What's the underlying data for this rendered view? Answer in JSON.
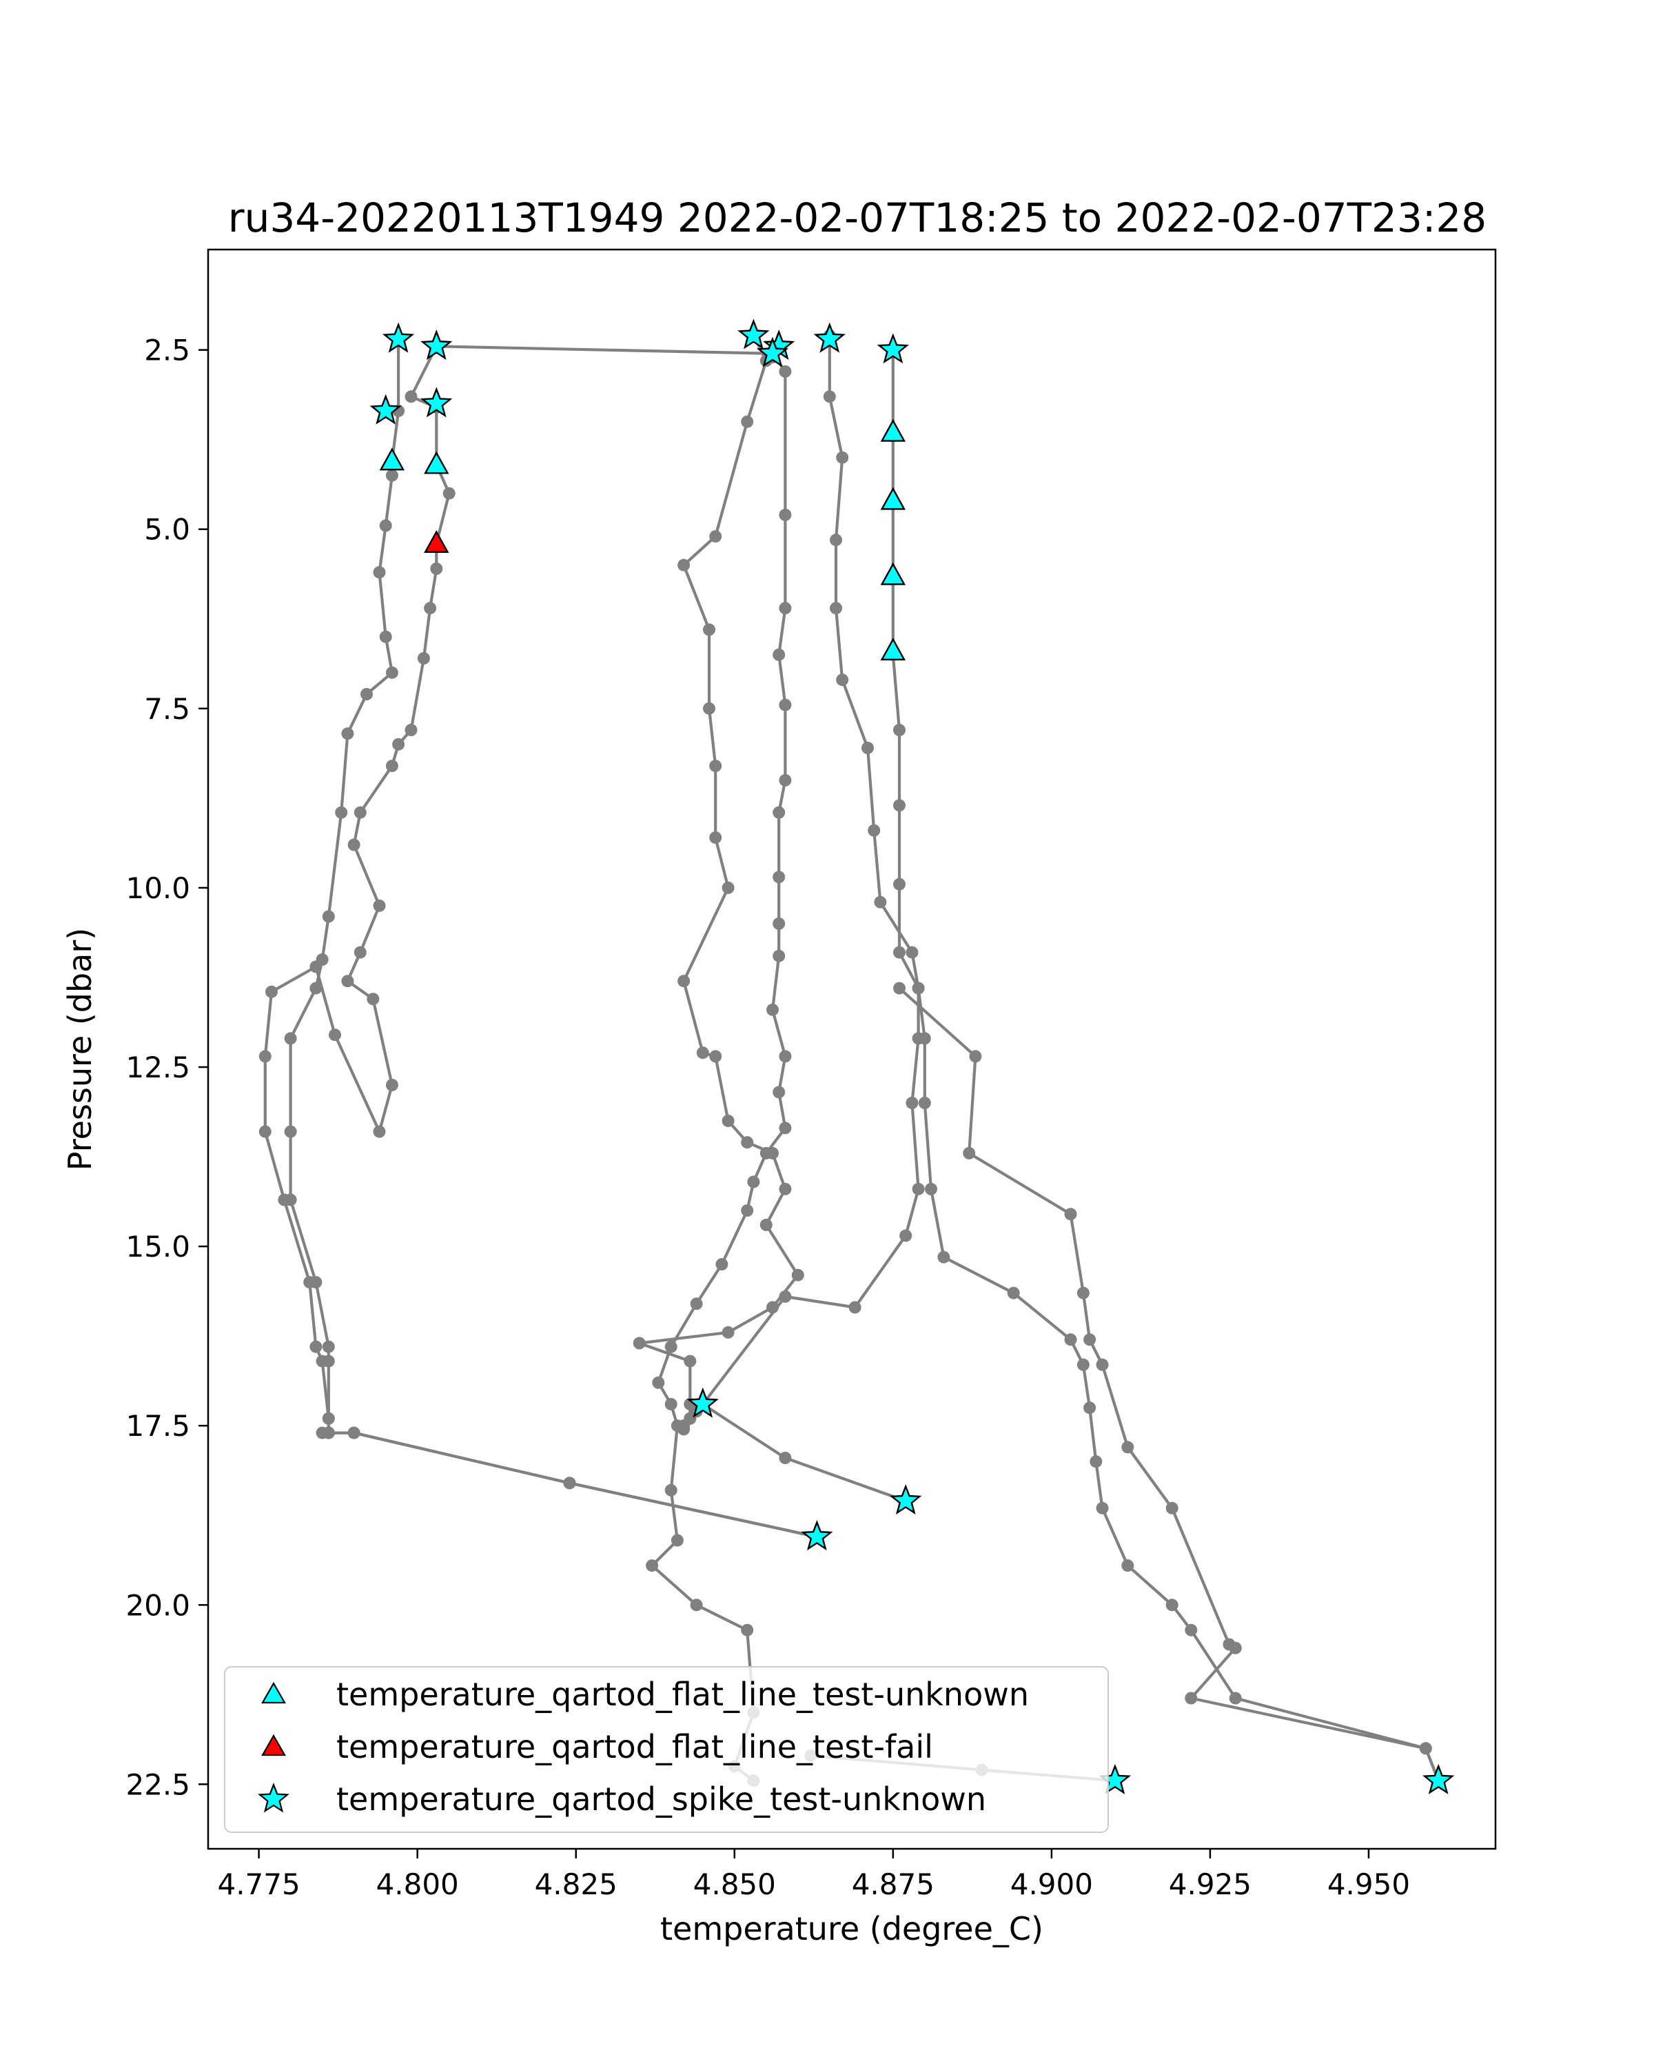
{
  "chart_data": {
    "type": "scatter",
    "title": "ru34-20220113T1949 2022-02-07T18:25 to 2022-02-07T23:28",
    "xlabel": "temperature (degree_C)",
    "ylabel": "Pressure (dbar)",
    "xlim": [
      4.767,
      4.97
    ],
    "ylim": [
      23.4,
      1.1
    ],
    "y_inverted": true,
    "x_ticks": [
      "4.775",
      "4.800",
      "4.825",
      "4.850",
      "4.875",
      "4.900",
      "4.925",
      "4.950"
    ],
    "x_tick_values": [
      4.775,
      4.8,
      4.825,
      4.85,
      4.875,
      4.9,
      4.925,
      4.95
    ],
    "y_ticks": [
      "2.5",
      "5.0",
      "7.5",
      "10.0",
      "12.5",
      "15.0",
      "17.5",
      "20.0",
      "22.5"
    ],
    "y_tick_values": [
      2.5,
      5.0,
      7.5,
      10.0,
      12.5,
      15.0,
      17.5,
      20.0,
      22.5
    ],
    "grid": false,
    "legend_position": "lower-left",
    "colors": {
      "line": "#808080",
      "unknown": "#00ffff",
      "fail": "#ff0000",
      "edge": "#000000"
    },
    "profiles": [
      {
        "x": [
          4.797,
          4.797,
          4.796,
          4.796,
          4.795,
          4.794,
          4.795,
          4.796,
          4.792,
          4.789,
          4.788,
          4.786,
          4.785,
          4.784,
          4.78,
          4.78,
          4.78,
          4.784,
          4.786,
          4.786,
          4.786,
          4.786,
          4.79,
          4.824,
          4.863
        ],
        "y": [
          2.35,
          3.35,
          4.05,
          4.25,
          4.95,
          5.6,
          6.5,
          7.0,
          7.3,
          7.85,
          8.95,
          10.4,
          11.0,
          11.4,
          12.1,
          13.4,
          14.35,
          15.5,
          16.4,
          16.6,
          17.4,
          17.6,
          17.6,
          18.3,
          19.05
        ]
      },
      {
        "x": [
          4.803,
          4.799,
          4.803,
          4.803,
          4.805,
          4.803,
          4.803,
          4.802,
          4.801,
          4.799,
          4.797,
          4.796,
          4.791,
          4.79,
          4.794,
          4.791,
          4.789,
          4.793,
          4.796,
          4.794,
          4.787,
          4.784,
          4.777,
          4.776,
          4.776,
          4.779,
          4.783,
          4.784,
          4.785,
          4.786,
          4.786,
          4.786,
          4.786,
          4.785,
          4.79,
          4.824,
          4.863
        ],
        "y": [
          2.45,
          3.15,
          3.3,
          4.1,
          4.5,
          5.2,
          5.55,
          6.1,
          6.8,
          7.8,
          8.0,
          8.3,
          8.95,
          9.4,
          10.25,
          10.9,
          11.3,
          11.55,
          12.75,
          13.4,
          12.05,
          11.1,
          11.45,
          12.35,
          13.4,
          14.35,
          15.5,
          16.4,
          16.6,
          17.4,
          17.6,
          17.6,
          17.6,
          17.6,
          17.6,
          18.3,
          19.05
        ]
      },
      {
        "x": [
          4.856,
          4.858,
          4.858,
          4.858,
          4.857,
          4.858,
          4.858,
          4.857,
          4.857,
          4.857,
          4.857,
          4.856,
          4.858,
          4.857,
          4.858,
          4.855,
          4.853,
          4.852,
          4.848,
          4.844,
          4.84,
          4.838,
          4.84,
          4.841,
          4.84,
          4.841,
          4.837,
          4.844,
          4.852,
          4.853,
          4.85,
          4.853
        ],
        "y": [
          2.55,
          2.8,
          4.8,
          6.1,
          6.75,
          7.45,
          8.5,
          8.95,
          9.85,
          10.5,
          10.95,
          11.7,
          12.35,
          12.85,
          13.35,
          13.7,
          14.1,
          14.5,
          15.25,
          15.8,
          16.4,
          16.9,
          17.2,
          17.5,
          18.4,
          19.1,
          19.45,
          20.0,
          20.35,
          21.5,
          22.25,
          22.45
        ]
      },
      {
        "x": [
          4.853,
          4.855,
          4.852,
          4.847,
          4.842,
          4.846,
          4.846,
          4.847,
          4.847,
          4.849,
          4.842,
          4.845,
          4.847,
          4.849,
          4.852,
          4.856,
          4.858,
          4.855,
          4.86,
          4.856,
          4.849,
          4.835,
          4.843,
          4.843,
          4.842,
          4.842,
          4.842,
          4.843,
          4.844,
          4.845,
          4.858,
          4.877
        ],
        "y": [
          2.3,
          2.65,
          3.5,
          5.1,
          5.5,
          6.4,
          7.5,
          8.3,
          9.3,
          10.0,
          11.3,
          12.3,
          12.35,
          13.25,
          13.55,
          13.7,
          14.2,
          14.7,
          15.4,
          15.85,
          16.2,
          16.35,
          16.6,
          17.4,
          17.55,
          17.5,
          17.5,
          17.4,
          17.3,
          17.2,
          17.95,
          18.55
        ]
      },
      {
        "x": [
          4.865,
          4.865,
          4.867,
          4.866,
          4.866,
          4.867,
          4.871,
          4.872,
          4.873,
          4.878,
          4.879,
          4.879,
          4.878,
          4.879,
          4.877,
          4.869,
          4.858,
          4.845,
          4.843,
          4.845
        ],
        "y": [
          2.3,
          3.15,
          4.0,
          5.15,
          6.1,
          7.1,
          8.05,
          9.2,
          10.2,
          10.9,
          11.4,
          12.1,
          13.0,
          14.2,
          14.85,
          15.85,
          15.7,
          17.2,
          17.2,
          17.2
        ]
      },
      {
        "x": [
          4.875,
          4.875,
          4.875,
          4.875,
          4.875,
          4.876,
          4.876,
          4.876,
          4.876,
          4.879,
          4.88,
          4.88,
          4.881,
          4.883,
          4.894,
          4.903,
          4.905,
          4.906,
          4.907,
          4.908,
          4.912,
          4.919,
          4.922,
          4.929,
          4.959,
          4.961
        ],
        "y": [
          2.5,
          3.7,
          4.6,
          5.7,
          6.75,
          7.8,
          8.85,
          9.95,
          10.9,
          11.4,
          12.1,
          13.0,
          14.2,
          15.15,
          15.65,
          16.3,
          16.65,
          17.25,
          18.0,
          18.65,
          19.45,
          20.0,
          20.35,
          21.3,
          22.0,
          22.45
        ]
      },
      {
        "x": [
          4.876,
          4.888,
          4.887,
          4.903,
          4.905,
          4.906,
          4.908,
          4.912,
          4.919,
          4.928,
          4.929,
          4.929,
          4.922,
          4.959,
          4.961
        ],
        "y": [
          11.4,
          12.35,
          13.7,
          14.55,
          15.65,
          16.3,
          16.65,
          17.8,
          18.65,
          20.55,
          20.6,
          20.6,
          21.3,
          22.0,
          22.45
        ]
      },
      {
        "x": [
          4.803,
          4.856,
          4.857,
          4.856
        ],
        "y": [
          2.45,
          2.55,
          2.45,
          2.6
        ]
      },
      {
        "x": [
          4.862,
          4.889,
          4.91
        ],
        "y": [
          22.1,
          22.3,
          22.45
        ]
      }
    ],
    "series": [
      {
        "name": "temperature_qartod_flat_line_test-unknown",
        "marker": "triangle",
        "x": [
          4.796,
          4.803,
          4.875,
          4.875,
          4.875,
          4.875
        ],
        "y": [
          4.05,
          4.1,
          3.65,
          4.6,
          5.65,
          6.7
        ]
      },
      {
        "name": "temperature_qartod_flat_line_test-fail",
        "marker": "triangle",
        "x": [
          4.803
        ],
        "y": [
          5.2
        ]
      },
      {
        "name": "temperature_qartod_spike_test-unknown",
        "marker": "star",
        "x": [
          4.797,
          4.803,
          4.795,
          4.803,
          4.853,
          4.857,
          4.856,
          4.865,
          4.875,
          4.845,
          4.877,
          4.863,
          4.91,
          4.961
        ],
        "y": [
          2.35,
          2.45,
          3.35,
          3.25,
          2.3,
          2.45,
          2.55,
          2.35,
          2.5,
          17.2,
          18.55,
          19.05,
          22.45,
          22.45
        ]
      }
    ]
  }
}
